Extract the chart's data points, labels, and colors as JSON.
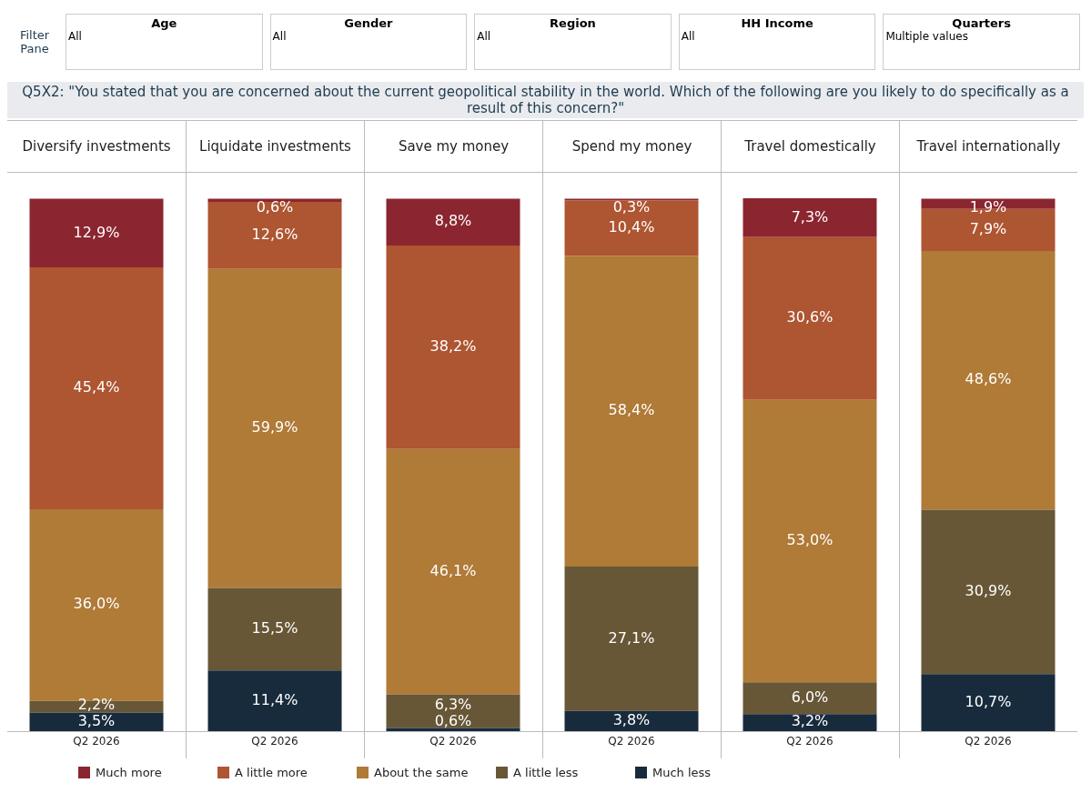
{
  "chart_data": [
    {
      "type": "other",
      "title": "Filter Pane",
      "subtitle": "Q5X2: \"You stated that you are concerned about the current geopolitical stability in the world. Which of the following are you likely to do specifically as a result of this concern?\"",
      "annotations": [
        "Age",
        "All",
        "Gender",
        "All",
        "Region",
        "All",
        "HH Income",
        "All",
        "Quarters",
        "Multiple values"
      ]
    },
    {
      "type": "bar",
      "categories": [
        "Diversify investments",
        "Liquidate investments",
        "Save my money",
        "Spend my money",
        "Travel domestically",
        "Travel internationally"
      ],
      "stacked": true,
      "ylim": [
        0,
        100.1
      ],
      "tick_labels": "x",
      "legend": "bottom",
      "annotations": [
        "Q2 2026",
        "Q2 2026",
        "Q2 2026",
        "Q2 2026",
        "Q2 2026",
        "Q2 2026"
      ],
      "series": [
        {
          "name": "Much less",
          "color": "#182b3c",
          "values": [
            3.5,
            11.4,
            0.6,
            3.8,
            3.2,
            10.7
          ],
          "value_labels": [
            "3,5%",
            "11,4%",
            "0,6%",
            "3,8%",
            "3,2%",
            "10,7%"
          ]
        },
        {
          "name": "A little less",
          "color": "#685737",
          "values": [
            2.2,
            15.5,
            6.3,
            27.1,
            6.0,
            30.9
          ],
          "value_labels": [
            "2,2%",
            "15,5%",
            "6,3%",
            "27,1%",
            "6,0%",
            "30,9%"
          ]
        },
        {
          "name": "About the same",
          "color": "#b07a37",
          "values": [
            36.0,
            59.9,
            46.1,
            58.4,
            53.0,
            48.6
          ],
          "value_labels": [
            "36,0%",
            "59,9%",
            "46,1%",
            "58,4%",
            "53,0%",
            "48,6%"
          ]
        },
        {
          "name": "A little more",
          "color": "#ae5532",
          "values": [
            45.4,
            12.6,
            38.2,
            10.4,
            30.6,
            7.9
          ],
          "value_labels": [
            "45,4%",
            "12,6%",
            "38,2%",
            "10,4%",
            "30,6%",
            "7,9%"
          ]
        },
        {
          "name": "Much more",
          "color": "#8b2630",
          "values": [
            12.9,
            0.6,
            8.8,
            0.3,
            7.3,
            1.9
          ],
          "value_labels": [
            "12,9%",
            "0,6%",
            "8,8%",
            "0,3%",
            "7,3%",
            "1,9%"
          ]
        }
      ]
    }
  ]
}
